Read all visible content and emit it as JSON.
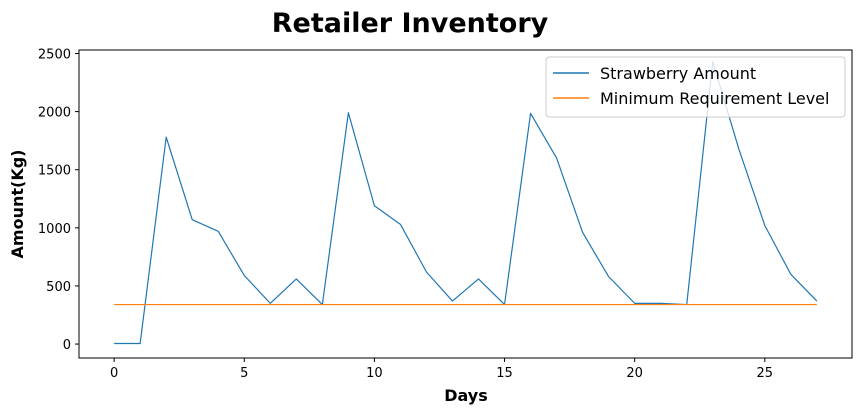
{
  "chart_data": {
    "type": "line",
    "title": "Retailer Inventory",
    "xlabel": "Days",
    "ylabel": "Amount(Kg)",
    "xlim": [
      -1.35,
      28.35
    ],
    "ylim": [
      -120,
      2530
    ],
    "xticks": [
      0,
      5,
      10,
      15,
      20,
      25
    ],
    "yticks": [
      0,
      500,
      1000,
      1500,
      2000,
      2500
    ],
    "x": [
      0,
      1,
      2,
      3,
      4,
      5,
      6,
      7,
      8,
      9,
      10,
      11,
      12,
      13,
      14,
      15,
      16,
      17,
      18,
      19,
      20,
      21,
      22,
      23,
      24,
      25,
      26,
      27
    ],
    "series": [
      {
        "name": "Strawberry Amount",
        "color": "#1f77b4",
        "values": [
          5,
          5,
          1780,
          1070,
          970,
          590,
          350,
          560,
          340,
          1990,
          1190,
          1030,
          620,
          370,
          560,
          340,
          1985,
          1600,
          960,
          580,
          350,
          350,
          340,
          2430,
          1680,
          1020,
          600,
          370
        ]
      },
      {
        "name": "Minimum Requirement Level",
        "color": "#ff7f0e",
        "values": [
          340,
          340,
          340,
          340,
          340,
          340,
          340,
          340,
          340,
          340,
          340,
          340,
          340,
          340,
          340,
          340,
          340,
          340,
          340,
          340,
          340,
          340,
          340,
          340,
          340,
          340,
          340,
          340
        ]
      }
    ],
    "legend_position": "top-right",
    "grid": false
  }
}
